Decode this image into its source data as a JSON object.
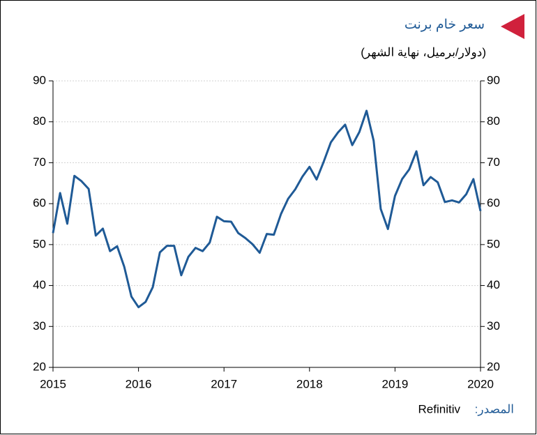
{
  "chart_data": {
    "type": "line",
    "title": "سعر خام برنت",
    "subtitle": "(دولار/برميل، نهاية الشهر)",
    "source_label": "المصدر:",
    "source": "Refinitiv",
    "x": [
      2015,
      2015.083,
      2015.167,
      2015.25,
      2015.333,
      2015.417,
      2015.5,
      2015.583,
      2015.667,
      2015.75,
      2015.833,
      2015.917,
      2016,
      2016.083,
      2016.167,
      2016.25,
      2016.333,
      2016.417,
      2016.5,
      2016.583,
      2016.667,
      2016.75,
      2016.833,
      2016.917,
      2017,
      2017.083,
      2017.167,
      2017.25,
      2017.333,
      2017.417,
      2017.5,
      2017.583,
      2017.667,
      2017.75,
      2017.833,
      2017.917,
      2018,
      2018.083,
      2018.167,
      2018.25,
      2018.333,
      2018.417,
      2018.5,
      2018.583,
      2018.667,
      2018.75,
      2018.833,
      2018.917,
      2019,
      2019.083,
      2019.167,
      2019.25,
      2019.333,
      2019.417,
      2019.5,
      2019.583,
      2019.667,
      2019.75,
      2019.833,
      2019.917,
      2020
    ],
    "values": [
      52.8,
      62.6,
      55.1,
      66.8,
      65.5,
      63.6,
      52.2,
      53.9,
      48.4,
      49.6,
      44.6,
      37.3,
      34.7,
      36.0,
      39.6,
      48.1,
      49.7,
      49.7,
      42.5,
      47.0,
      49.2,
      48.4,
      50.5,
      56.8,
      55.7,
      55.6,
      52.8,
      51.6,
      50.1,
      48.0,
      52.6,
      52.4,
      57.5,
      61.2,
      63.5,
      66.6,
      69.0,
      65.9,
      70.3,
      75.0,
      77.4,
      79.3,
      74.3,
      77.5,
      82.7,
      75.4,
      58.7,
      53.8,
      61.9,
      66.0,
      68.4,
      72.8,
      64.5,
      66.5,
      65.2,
      60.4,
      60.8,
      60.3,
      62.3,
      66.0,
      58.2
    ],
    "color": "#1f5a96",
    "xlim": [
      2015,
      2020
    ],
    "xticks": [
      2015,
      2016,
      2017,
      2018,
      2019,
      2020
    ],
    "ylim": [
      20,
      90
    ],
    "yticks": [
      20,
      30,
      40,
      50,
      60,
      70,
      80,
      90
    ],
    "y2lim": [
      20,
      90
    ],
    "y2ticks": [
      20,
      30,
      40,
      50,
      60,
      70,
      80,
      90
    ],
    "grid": true
  }
}
